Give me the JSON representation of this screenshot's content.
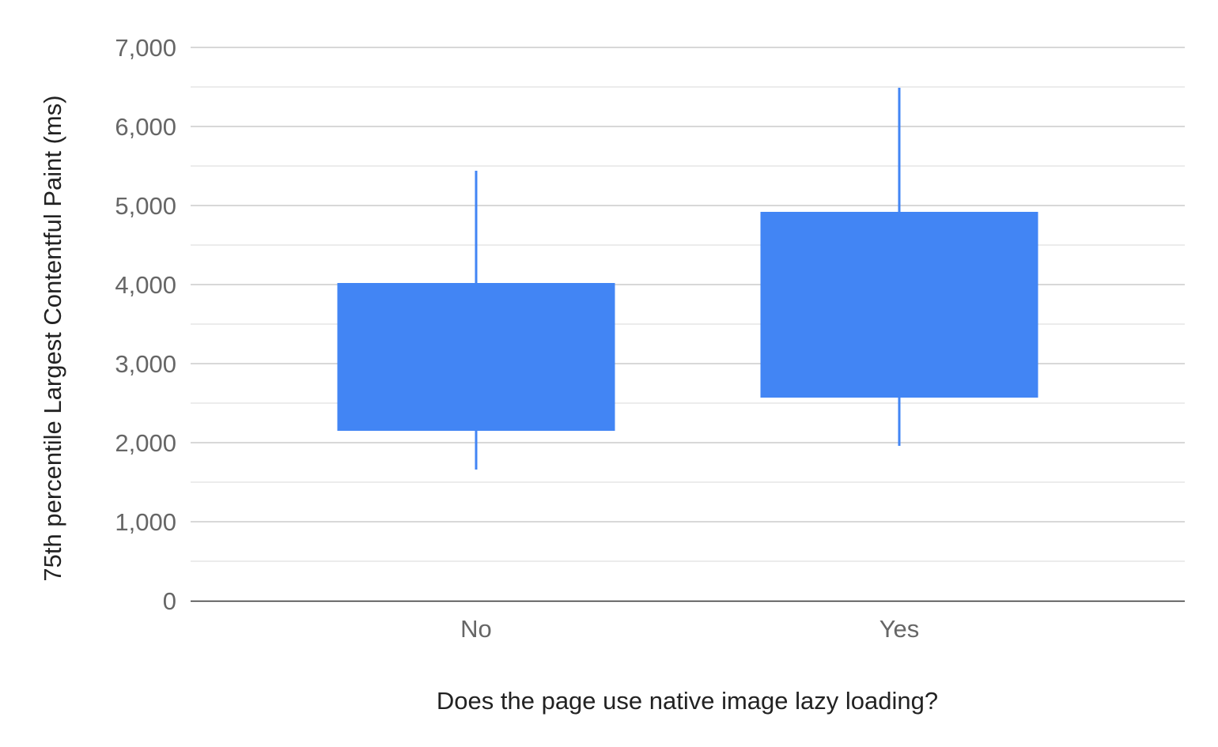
{
  "chart_data": {
    "type": "candlestick",
    "xlabel": "Does the page use native image lazy loading?",
    "ylabel": "75th percentile Largest Contentful Paint (ms)",
    "ylim": [
      0,
      7000
    ],
    "yticks": [
      "0",
      "1,000",
      "2,000",
      "3,000",
      "4,000",
      "5,000",
      "6,000",
      "7,000"
    ],
    "ytick_values": [
      0,
      1000,
      2000,
      3000,
      4000,
      5000,
      6000,
      7000
    ],
    "grid": true,
    "minor_grid": true,
    "categories": [
      "No",
      "Yes"
    ],
    "series": [
      {
        "low": 1660,
        "open": 2150,
        "close": 4020,
        "high": 5440
      },
      {
        "low": 1960,
        "open": 2570,
        "close": 4920,
        "high": 6490
      }
    ],
    "color": "#4285f4"
  }
}
